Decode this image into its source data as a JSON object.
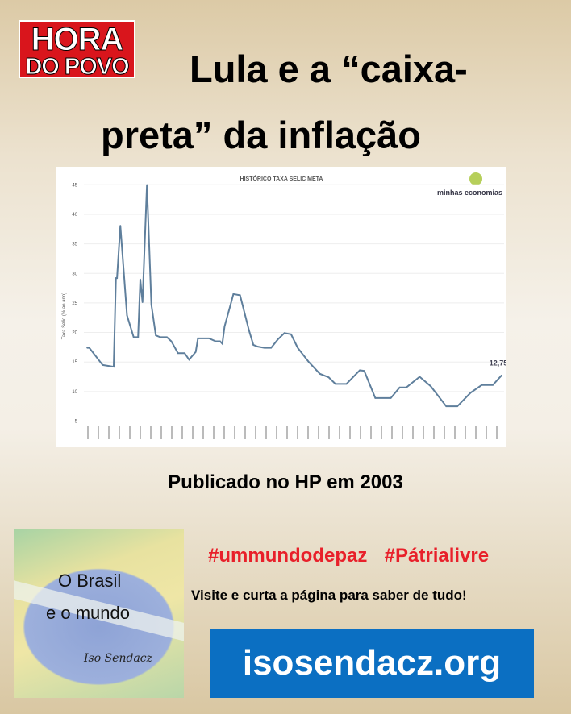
{
  "logo": {
    "line1": "HORA",
    "line2": "DO POVO"
  },
  "title": "Lula e a “caixa-preta” da inflação",
  "caption": "Publicado no HP em 2003",
  "promo_image": {
    "line1": "O Brasil",
    "line2": "e o mundo",
    "signature": "Iso Sendacz"
  },
  "hashtags": "#ummundodepaz  #Pátrialivre",
  "visit_text": "Visite e curta a página para saber de tudo!",
  "site": "isosendacz.org",
  "colors": {
    "logo_red": "#d9151c",
    "hashtag_red": "#e8202a",
    "site_blue": "#0b6fc2",
    "line": "#5f7f9c"
  },
  "chart_data": {
    "type": "line",
    "title": "HISTÓRICO TAXA SELIC META",
    "ylabel": "Taxa Selic (% ao ano)",
    "xlabel": "",
    "brand": "minhas economias",
    "ylim": [
      5,
      45
    ],
    "yticks": [
      5,
      10,
      15,
      20,
      25,
      30,
      35,
      40,
      45
    ],
    "grid": true,
    "last_label": "12,75",
    "series": [
      {
        "x": [
          1996.5,
          1996.6,
          1997.2,
          1997.7,
          1997.8,
          1997.85,
          1998.0,
          1998.3,
          1998.6,
          1998.8,
          1998.9,
          1999.0,
          1999.2,
          1999.4,
          1999.6,
          1999.8,
          2000.1,
          2000.3,
          2000.6,
          2000.9,
          2001.1,
          2001.4,
          2001.5,
          2002.0,
          2002.3,
          2002.5,
          2002.6,
          2002.7,
          2003.0,
          2003.1,
          2003.4,
          2003.8,
          2004.0,
          2004.2,
          2004.5,
          2004.8,
          2005.1,
          2005.4,
          2005.7,
          2006.0,
          2006.5,
          2007.0,
          2007.4,
          2007.7,
          2008.2,
          2008.8,
          2009.0,
          2009.5,
          2010.2,
          2010.6,
          2010.9,
          2011.5,
          2012.0,
          2012.7,
          2013.2,
          2013.8,
          2014.3,
          2014.8,
          2015.2
        ],
        "y": [
          17.4,
          17.4,
          14.5,
          14.2,
          29.2,
          29.2,
          38.1,
          22.9,
          19.2,
          19.2,
          29,
          25.1,
          45,
          24.7,
          19.5,
          19.2,
          19.2,
          18.5,
          16.5,
          16.5,
          15.4,
          16.7,
          19,
          19,
          18.5,
          18.5,
          18.1,
          21,
          25.1,
          26.5,
          26.3,
          20.4,
          17.9,
          17.6,
          17.4,
          17.4,
          18.8,
          19.9,
          19.7,
          17.4,
          15.0,
          13.0,
          12.4,
          11.3,
          11.3,
          13.6,
          13.5,
          8.9,
          8.9,
          10.7,
          10.7,
          12.5,
          10.9,
          7.5,
          7.5,
          9.8,
          11.1,
          11.1,
          12.75
        ]
      }
    ]
  }
}
